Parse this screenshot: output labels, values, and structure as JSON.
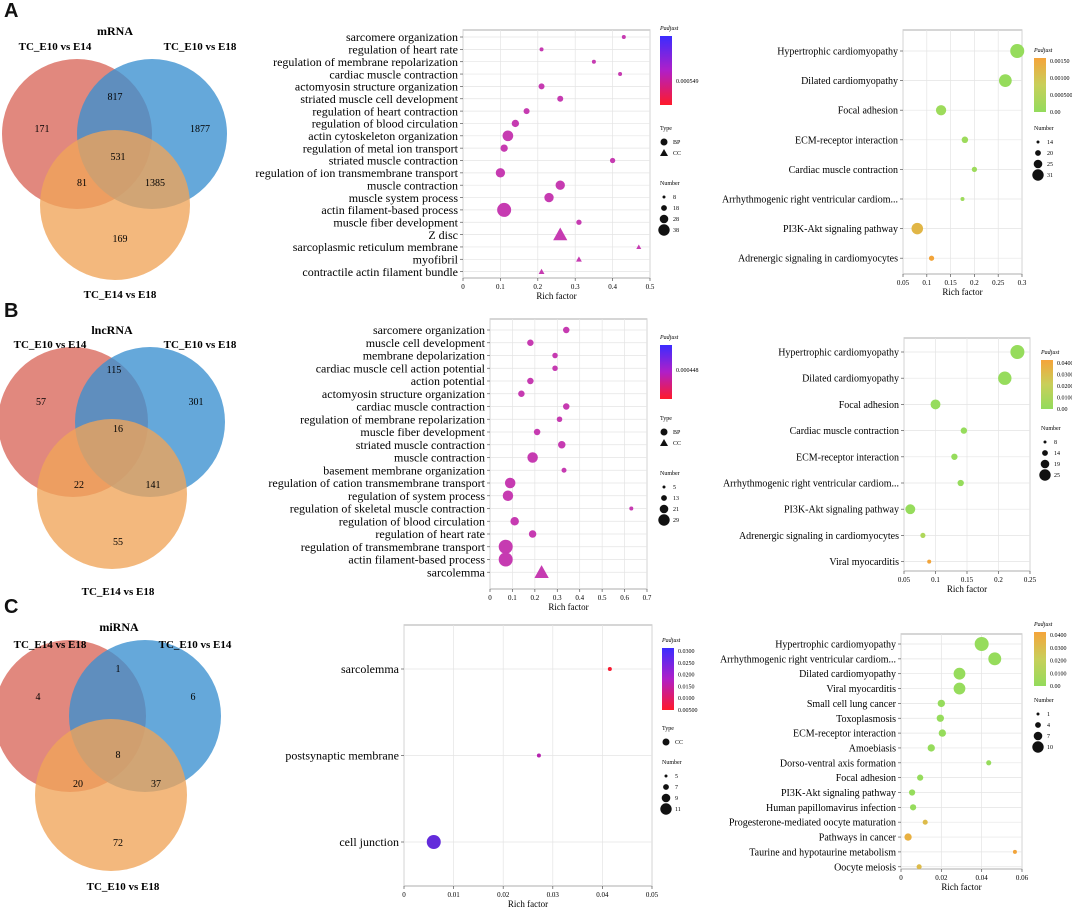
{
  "panels": [
    {
      "letter": "A"
    },
    {
      "letter": "B"
    },
    {
      "letter": "C"
    }
  ],
  "chart_data": [
    {
      "type": "venn",
      "id": "venn-A",
      "title": "mRNA",
      "sets": [
        "TC_E10 vs E14",
        "TC_E10 vs E18",
        "TC_E14 vs E18"
      ],
      "colors": [
        "#d9675a",
        "#3a8fd0",
        "#efa458"
      ],
      "regions": {
        "a_only": "171",
        "b_only": "1877",
        "c_only": "169",
        "ab": "817",
        "ac": "81",
        "bc": "1385",
        "abc": "531"
      }
    },
    {
      "type": "scatter",
      "id": "go-A",
      "xlabel": "Rich factor",
      "xlim": [
        0,
        0.5
      ],
      "xticks": [
        "0",
        "0.1",
        "0.2",
        "0.3",
        "0.4",
        "0.5"
      ],
      "categories": [
        "sarcomere organization",
        "regulation of heart rate",
        "regulation of membrane repolarization",
        "cardiac muscle contraction",
        "actomyosin structure organization",
        "striated muscle cell development",
        "regulation of heart contraction",
        "regulation of blood circulation",
        "actin cytoskeleton organization",
        "regulation of metal ion transport",
        "striated muscle contraction",
        "regulation of ion transmembrane transport",
        "muscle contraction",
        "muscle system process",
        "actin filament-based process",
        "muscle fiber development",
        "Z disc",
        "sarcoplasmic reticulum membrane",
        "myofibril",
        "contractile actin filament bundle"
      ],
      "x": [
        0.43,
        0.21,
        0.35,
        0.42,
        0.21,
        0.26,
        0.17,
        0.14,
        0.12,
        0.11,
        0.4,
        0.1,
        0.26,
        0.23,
        0.11,
        0.31,
        0.26,
        0.47,
        0.31,
        0.21
      ],
      "size": [
        8,
        8,
        8,
        8,
        14,
        14,
        14,
        18,
        28,
        18,
        12,
        24,
        24,
        24,
        38,
        12,
        30,
        8,
        10,
        10
      ],
      "padj": [
        0.0004,
        0.0002,
        5e-05,
        0.0001,
        0.0003,
        0.0003,
        0.00025,
        0.0002,
        0.0002,
        0.0001,
        0.0001,
        0.0003,
        0.0003,
        0.0003,
        0.0003,
        0.0002,
        0.0002,
        0.0001,
        0.0002,
        0.0002
      ],
      "kind": [
        "BP",
        "BP",
        "BP",
        "BP",
        "BP",
        "BP",
        "BP",
        "BP",
        "BP",
        "BP",
        "BP",
        "BP",
        "BP",
        "BP",
        "BP",
        "BP",
        "CC",
        "CC",
        "CC",
        "CC"
      ],
      "legend": {
        "color_title": "Padjust",
        "color_ticks": [
          "0.000549"
        ],
        "type_title": "Type",
        "types": [
          "BP",
          "CC"
        ],
        "size_title": "Number",
        "sizes": [
          "8",
          "18",
          "28",
          "38"
        ]
      }
    },
    {
      "type": "scatter",
      "id": "kegg-A",
      "xlabel": "Rich factor",
      "xlim": [
        0.05,
        0.3
      ],
      "xticks": [
        "0.05",
        "0.1",
        "0.15",
        "0.2",
        "0.25",
        "0.3"
      ],
      "categories": [
        "Hypertrophic cardiomyopathy",
        "Dilated cardiomyopathy",
        "Focal adhesion",
        "ECM-receptor interaction",
        "Cardiac muscle contraction",
        "Arrhythmogenic right ventricular cardiom...",
        "PI3K-Akt signaling pathway",
        "Adrenergic signaling in cardiomyocytes"
      ],
      "x": [
        0.29,
        0.265,
        0.13,
        0.18,
        0.2,
        0.175,
        0.08,
        0.11
      ],
      "size": [
        28,
        26,
        22,
        16,
        14,
        12,
        24,
        14
      ],
      "padj": [
        0.0,
        0.0,
        0.0001,
        0.0001,
        0.0001,
        0.0001,
        0.0012,
        0.0015
      ],
      "legend": {
        "color_title": "Padjust",
        "color_ticks": [
          "0.00150",
          "0.00100",
          "0.000500",
          "0.00"
        ],
        "size_title": "Number",
        "sizes": [
          "14",
          "20",
          "25",
          "31"
        ]
      }
    },
    {
      "type": "venn",
      "id": "venn-B",
      "title": "lncRNA",
      "sets": [
        "TC_E10 vs E14",
        "TC_E10 vs E18",
        "TC_E14 vs E18"
      ],
      "colors": [
        "#d9675a",
        "#3a8fd0",
        "#efa458"
      ],
      "regions": {
        "a_only": "57",
        "b_only": "301",
        "c_only": "55",
        "ab": "115",
        "ac": "22",
        "bc": "141",
        "abc": "16"
      }
    },
    {
      "type": "scatter",
      "id": "go-B",
      "xlabel": "Rich factor",
      "xlim": [
        0,
        0.7
      ],
      "xticks": [
        "0",
        "0.1",
        "0.2",
        "0.3",
        "0.4",
        "0.5",
        "0.6",
        "0.7"
      ],
      "categories": [
        "sarcomere organization",
        "muscle cell development",
        "membrane depolarization",
        "cardiac muscle cell action potential",
        "action potential",
        "actomyosin structure organization",
        "cardiac muscle contraction",
        "regulation of membrane repolarization",
        "muscle fiber development",
        "striated muscle contraction",
        "muscle contraction",
        "basement membrane organization",
        "regulation of cation transmembrane transport",
        "regulation of system process",
        "regulation of skeletal muscle contraction",
        "regulation of blood circulation",
        "regulation of heart rate",
        "regulation of transmembrane transport",
        "actin filament-based process",
        "sarcolemma"
      ],
      "x": [
        0.34,
        0.18,
        0.29,
        0.29,
        0.18,
        0.14,
        0.34,
        0.31,
        0.21,
        0.32,
        0.19,
        0.33,
        0.09,
        0.08,
        0.63,
        0.11,
        0.19,
        0.07,
        0.07,
        0.23
      ],
      "size": [
        10,
        10,
        8,
        8,
        10,
        10,
        10,
        8,
        10,
        12,
        18,
        7,
        18,
        18,
        5,
        14,
        12,
        25,
        25,
        20
      ],
      "padj": [
        0.0002,
        0.0003,
        0.0003,
        0.0003,
        0.0003,
        0.0003,
        0.0003,
        0.0003,
        0.0003,
        0.0003,
        0.0003,
        0.0003,
        0.0003,
        0.0003,
        0.0002,
        0.0003,
        0.0003,
        0.0003,
        0.0003,
        0.0003
      ],
      "kind": [
        "BP",
        "BP",
        "BP",
        "BP",
        "BP",
        "BP",
        "BP",
        "BP",
        "BP",
        "BP",
        "BP",
        "BP",
        "BP",
        "BP",
        "BP",
        "BP",
        "BP",
        "BP",
        "BP",
        "CC"
      ],
      "legend": {
        "color_title": "Padjust",
        "color_ticks": [
          "0.000448"
        ],
        "type_title": "Type",
        "types": [
          "BP",
          "CC"
        ],
        "size_title": "Number",
        "sizes": [
          "5",
          "13",
          "21",
          "29"
        ]
      }
    },
    {
      "type": "scatter",
      "id": "kegg-B",
      "xlabel": "Rich factor",
      "xlim": [
        0.05,
        0.25
      ],
      "xticks": [
        "0.05",
        "0.1",
        "0.15",
        "0.2",
        "0.25"
      ],
      "categories": [
        "Hypertrophic cardiomyopathy",
        "Dilated cardiomyopathy",
        "Focal adhesion",
        "Cardiac muscle contraction",
        "ECM-receptor interaction",
        "Arrhythmogenic right ventricular cardiom...",
        "PI3K-Akt signaling pathway",
        "Adrenergic signaling in cardiomyocytes",
        "Viral myocarditis"
      ],
      "x": [
        0.23,
        0.21,
        0.1,
        0.145,
        0.13,
        0.14,
        0.06,
        0.08,
        0.09
      ],
      "size": [
        25,
        24,
        18,
        12,
        12,
        12,
        18,
        10,
        8
      ],
      "padj": [
        0.0,
        0.0,
        0.0,
        0.0,
        0.0,
        0.0,
        0.0,
        0.01,
        0.04
      ],
      "legend": {
        "color_title": "Padjust",
        "color_ticks": [
          "0.0400",
          "0.0300",
          "0.0200",
          "0.0100",
          "0.00"
        ],
        "size_title": "Number",
        "sizes": [
          "8",
          "14",
          "19",
          "25"
        ]
      }
    },
    {
      "type": "venn",
      "id": "venn-C",
      "title": "miRNA",
      "sets": [
        "TC_E14 vs E18",
        "TC_E10 vs E14",
        "TC_E10 vs E18"
      ],
      "colors": [
        "#d9675a",
        "#3a8fd0",
        "#efa458"
      ],
      "regions": {
        "a_only": "4",
        "b_only": "6",
        "c_only": "72",
        "ab": "1",
        "ac": "20",
        "bc": "37",
        "abc": "8"
      }
    },
    {
      "type": "scatter",
      "id": "go-C",
      "xlabel": "Rich factor",
      "xlim": [
        0,
        0.05
      ],
      "xticks": [
        "0",
        "0.01",
        "0.02",
        "0.03",
        "0.04",
        "0.05"
      ],
      "categories": [
        "sarcolemma",
        "postsynaptic membrane",
        "cell junction"
      ],
      "x": [
        0.0415,
        0.0272,
        0.006
      ],
      "size": [
        5,
        5,
        11
      ],
      "padj": [
        0.003,
        0.02,
        0.03
      ],
      "kind": [
        "CC",
        "CC",
        "CC"
      ],
      "legend": {
        "color_title": "Padjust",
        "color_ticks": [
          "0.0300",
          "0.0250",
          "0.0200",
          "0.0150",
          "0.0100",
          "0.00500"
        ],
        "type_title": "Type",
        "types": [
          "CC"
        ],
        "size_title": "Number",
        "sizes": [
          "5",
          "7",
          "9",
          "11"
        ]
      }
    },
    {
      "type": "scatter",
      "id": "kegg-C",
      "xlabel": "Rich factor",
      "xlim": [
        0,
        0.06
      ],
      "xticks": [
        "0",
        "0.02",
        "0.04",
        "0.06"
      ],
      "categories": [
        "Hypertrophic cardiomyopathy",
        "Arrhythmogenic right ventricular cardiom...",
        "Dilated cardiomyopathy",
        "Viral myocarditis",
        "Small cell lung cancer",
        "Toxoplasmosis",
        "ECM-receptor interaction",
        "Amoebiasis",
        "Dorso-ventral axis formation",
        "Focal adhesion",
        "PI3K-Akt signaling pathway",
        "Human papillomavirus infection",
        "Progesterone-mediated oocyte maturation",
        "Pathways in cancer",
        "Taurine and hypotaurine metabolism",
        "Oocyte meiosis"
      ],
      "x": [
        0.04,
        0.0465,
        0.029,
        0.029,
        0.02,
        0.0195,
        0.0205,
        0.015,
        0.0435,
        0.0095,
        0.0055,
        0.006,
        0.012,
        0.0035,
        0.0565,
        0.009
      ],
      "size": [
        10,
        9,
        8,
        8,
        4,
        4,
        4,
        4,
        2,
        3,
        3,
        3,
        2,
        4,
        1,
        2
      ],
      "padj": [
        0.0,
        0.0,
        0.0,
        0.0,
        0.0,
        0.0,
        0.0,
        0.0,
        0.0,
        0.0,
        0.0,
        0.0,
        0.03,
        0.035,
        0.04,
        0.03
      ],
      "legend": {
        "color_title": "Padjust",
        "color_ticks": [
          "0.0400",
          "0.0300",
          "0.0200",
          "0.0100",
          "0.00"
        ],
        "size_title": "Number",
        "sizes": [
          "1",
          "4",
          "7",
          "10"
        ]
      }
    }
  ]
}
